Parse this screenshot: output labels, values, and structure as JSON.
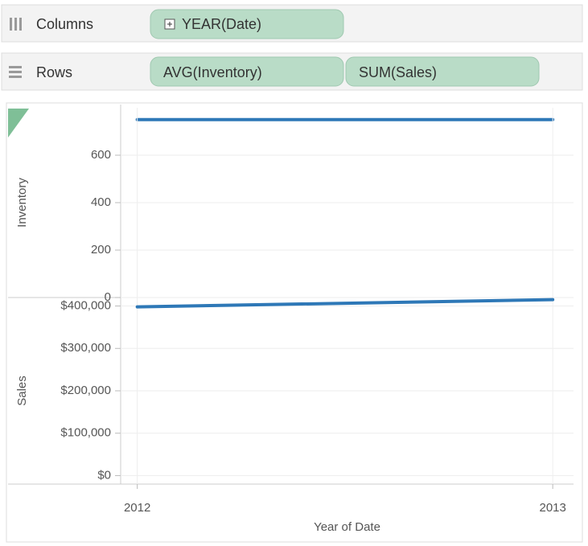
{
  "shelves": {
    "columns": {
      "label": "Columns",
      "pills": [
        "YEAR(Date)"
      ]
    },
    "rows": {
      "label": "Rows",
      "pills": [
        "AVG(Inventory)",
        "SUM(Sales)"
      ]
    }
  },
  "chart_data": [
    {
      "type": "line",
      "y_label": "Inventory",
      "x": [
        2012,
        2013
      ],
      "values": [
        750,
        750
      ],
      "color": "#2e78b7",
      "xlim": [
        2011.96,
        2013.05
      ],
      "ylim": [
        0,
        800
      ],
      "yticks": [
        0,
        200,
        400,
        600
      ],
      "grid": true
    },
    {
      "type": "line",
      "y_label": "Sales",
      "x_label": "Year of Date",
      "x": [
        2012,
        2013
      ],
      "values": [
        398000,
        415000
      ],
      "color": "#2e78b7",
      "xlim": [
        2011.96,
        2013.05
      ],
      "ylim": [
        -20000,
        420000
      ],
      "yticks": [
        {
          "value": 0,
          "label": "$0"
        },
        {
          "value": 100000,
          "label": "$100,000"
        },
        {
          "value": 200000,
          "label": "$200,000"
        },
        {
          "value": 300000,
          "label": "$300,000"
        },
        {
          "value": 400000,
          "label": "$400,000"
        }
      ],
      "xticks": [
        2012,
        2013
      ],
      "grid": true
    }
  ]
}
